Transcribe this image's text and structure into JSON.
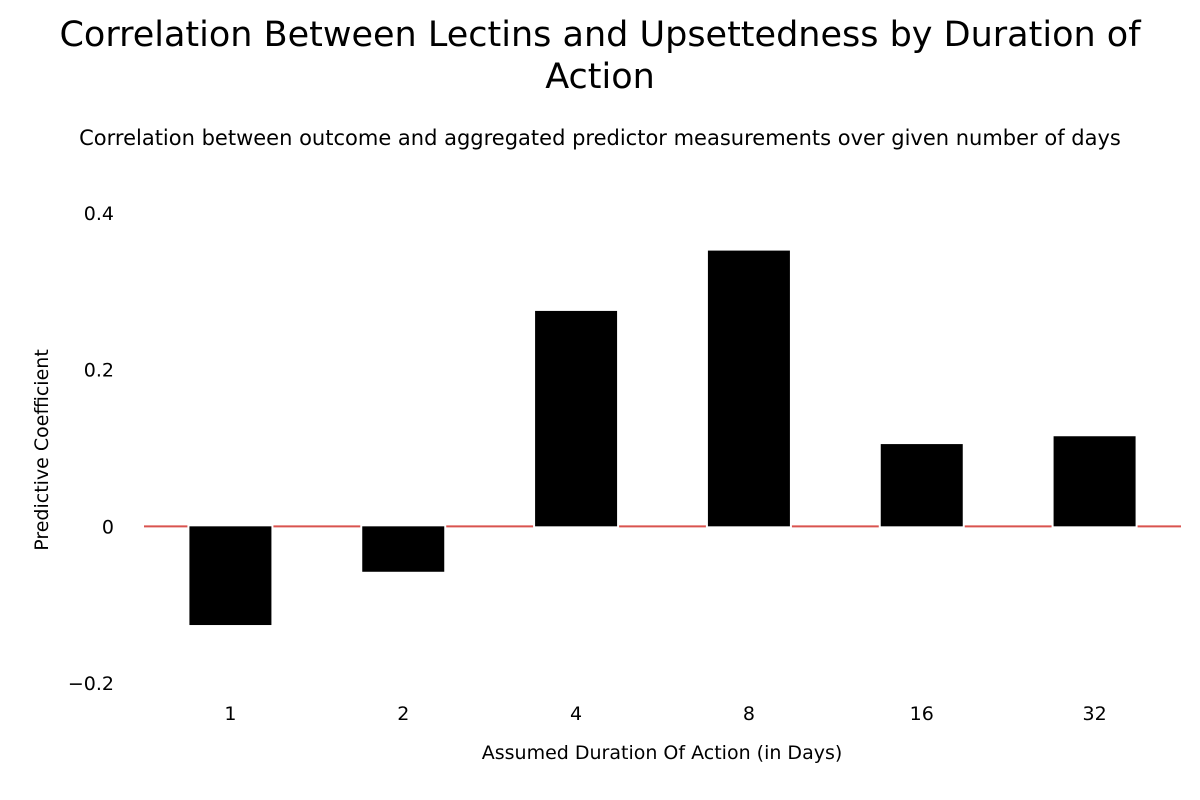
{
  "chart_data": {
    "type": "bar",
    "title": "Correlation Between Lectins and Upsettedness by Duration of Action",
    "subtitle": "Correlation between outcome and aggregated predictor measurements over given number of days",
    "xlabel": "Assumed Duration Of Action (in Days)",
    "ylabel": "Predictive Coefficient",
    "categories": [
      "1",
      "2",
      "4",
      "8",
      "16",
      "32"
    ],
    "values": [
      -0.126,
      -0.058,
      0.275,
      0.352,
      0.105,
      0.115
    ],
    "ylim": [
      -0.2,
      0.4
    ],
    "yticks": [
      {
        "value": 0.4,
        "label": "0.4"
      },
      {
        "value": 0.2,
        "label": "0.2"
      },
      {
        "value": 0,
        "label": "0"
      },
      {
        "value": -0.2,
        "label": "−0.2"
      }
    ],
    "bar_color": "#000000",
    "zero_line_color": "#d9534f",
    "grid": false,
    "legend": "none"
  }
}
